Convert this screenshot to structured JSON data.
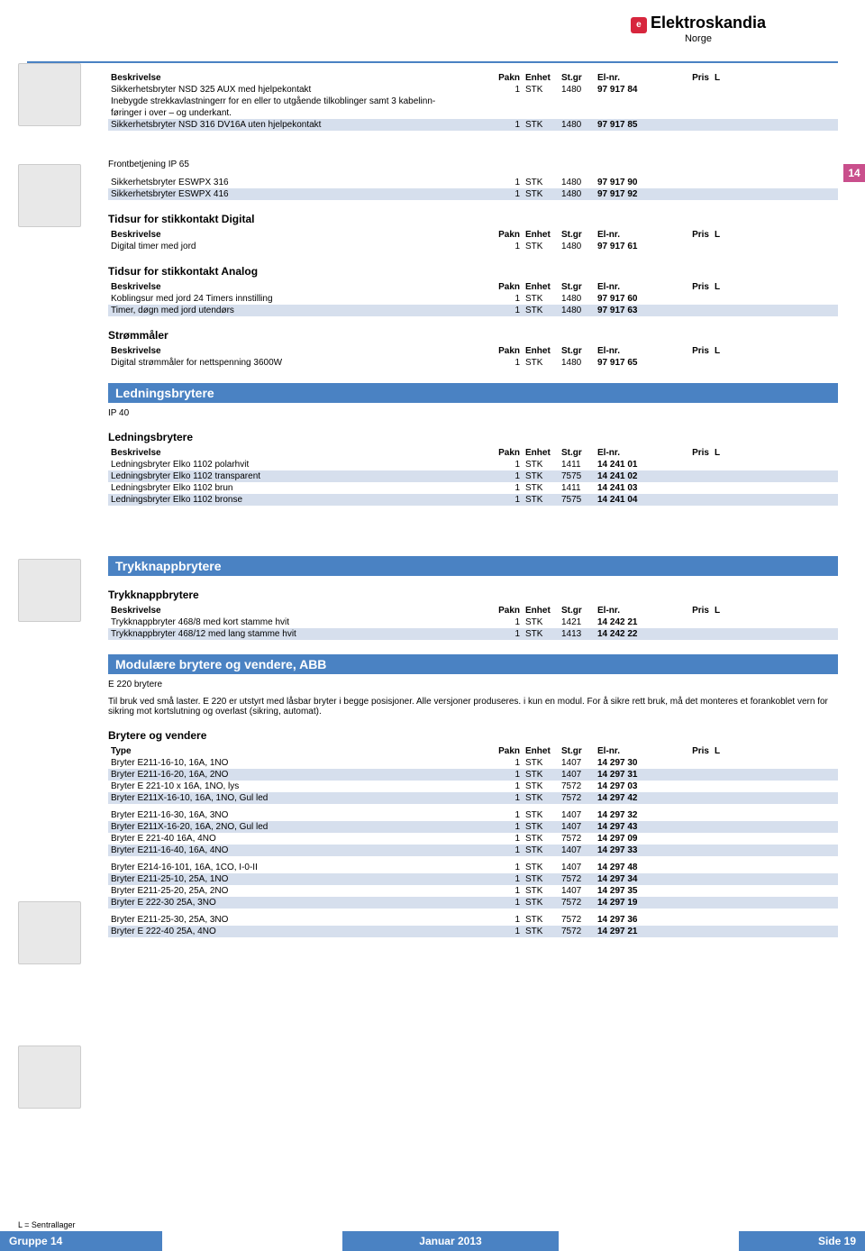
{
  "brand": {
    "name": "Elektroskandia",
    "sub": "Norge",
    "icon": "e"
  },
  "tab": "14",
  "headers": {
    "desc": "Beskrivelse",
    "type": "Type",
    "pakn": "Pakn",
    "enhet": "Enhet",
    "stgr": "St.gr",
    "elnr": "El-nr.",
    "pris": "Pris",
    "l": "L"
  },
  "tables": {
    "t1": {
      "rows": [
        {
          "d": "Sikkerhetsbryter NSD 325 AUX med hjelpekontakt",
          "p": "1",
          "e": "STK",
          "s": "1480",
          "n": "97 917 84",
          "alt": false
        },
        {
          "d": "Inebygde strekkavlastningerr for en eller to utgående tilkoblinger samt 3 kabelinn-",
          "alt": false,
          "textonly": true
        },
        {
          "d": "føringer i over – og underkant.",
          "alt": false,
          "textonly": true
        },
        {
          "d": "Sikkerhetsbryter NSD 316 DV16A uten hjelpekontakt",
          "p": "1",
          "e": "STK",
          "s": "1480",
          "n": "97 917 85",
          "alt": true
        }
      ]
    },
    "t2": {
      "title": "Frontbetjening IP 65",
      "rows": [
        {
          "d": "Sikkerhetsbryter ESWPX 316",
          "p": "1",
          "e": "STK",
          "s": "1480",
          "n": "97 917 90",
          "alt": false
        },
        {
          "d": "Sikkerhetsbryter ESWPX 416",
          "p": "1",
          "e": "STK",
          "s": "1480",
          "n": "97 917 92",
          "alt": true
        }
      ]
    },
    "t3": {
      "title": "Tidsur for stikkontakt Digital",
      "rows": [
        {
          "d": "Digital timer med jord",
          "p": "1",
          "e": "STK",
          "s": "1480",
          "n": "97 917 61",
          "alt": false
        }
      ]
    },
    "t4": {
      "title": "Tidsur for stikkontakt Analog",
      "rows": [
        {
          "d": "Koblingsur med jord 24 Timers innstilling",
          "p": "1",
          "e": "STK",
          "s": "1480",
          "n": "97 917 60",
          "alt": false
        },
        {
          "d": "Timer, døgn med jord utendørs",
          "p": "1",
          "e": "STK",
          "s": "1480",
          "n": "97 917 63",
          "alt": true
        }
      ]
    },
    "t5": {
      "title": "Strømmåler",
      "rows": [
        {
          "d": "Digital strømmåler for nettspenning 3600W",
          "p": "1",
          "e": "STK",
          "s": "1480",
          "n": "97 917 65",
          "alt": false
        }
      ]
    },
    "t6": {
      "cat": "Ledningsbrytere",
      "note": "IP 40",
      "title": "Ledningsbrytere",
      "rows": [
        {
          "d": "Ledningsbryter Elko 1102 polarhvit",
          "p": "1",
          "e": "STK",
          "s": "1411",
          "n": "14 241 01",
          "alt": false
        },
        {
          "d": "Ledningsbryter Elko 1102 transparent",
          "p": "1",
          "e": "STK",
          "s": "7575",
          "n": "14 241 02",
          "alt": true
        },
        {
          "d": "Ledningsbryter Elko 1102 brun",
          "p": "1",
          "e": "STK",
          "s": "1411",
          "n": "14 241 03",
          "alt": false
        },
        {
          "d": "Ledningsbryter Elko 1102 bronse",
          "p": "1",
          "e": "STK",
          "s": "7575",
          "n": "14 241 04",
          "alt": true
        }
      ]
    },
    "t7": {
      "cat": "Trykknappbrytere",
      "title": "Trykknappbrytere",
      "rows": [
        {
          "d": "Trykknappbryter 468/8 med kort stamme hvit",
          "p": "1",
          "e": "STK",
          "s": "1421",
          "n": "14 242 21",
          "alt": false
        },
        {
          "d": "Trykknappbryter 468/12 med lang stamme hvit",
          "p": "1",
          "e": "STK",
          "s": "1413",
          "n": "14 242 22",
          "alt": true
        }
      ]
    },
    "t8": {
      "cat": "Modulære brytere og vendere, ABB",
      "noteTitle": "E 220 brytere",
      "note": "Til bruk ved små laster. E 220 er utstyrt med låsbar bryter i begge posisjoner. Alle versjoner produseres. i kun en modul. For å sikre rett bruk, må det monteres et forankoblet vern for sikring mot kortslutning og overlast (sikring, automat).",
      "title": "Brytere og vendere",
      "header": "type",
      "groups": [
        [
          {
            "d": "Bryter E211-16-10, 16A, 1NO",
            "p": "1",
            "e": "STK",
            "s": "1407",
            "n": "14 297 30",
            "alt": false
          },
          {
            "d": "Bryter E211-16-20, 16A, 2NO",
            "p": "1",
            "e": "STK",
            "s": "1407",
            "n": "14 297 31",
            "alt": true
          },
          {
            "d": "Bryter E 221-10 x 16A, 1NO, lys",
            "p": "1",
            "e": "STK",
            "s": "7572",
            "n": "14 297 03",
            "alt": false
          },
          {
            "d": "Bryter E211X-16-10, 16A, 1NO, Gul led",
            "p": "1",
            "e": "STK",
            "s": "7572",
            "n": "14 297 42",
            "alt": true
          }
        ],
        [
          {
            "d": "Bryter E211-16-30, 16A, 3NO",
            "p": "1",
            "e": "STK",
            "s": "1407",
            "n": "14 297 32",
            "alt": false
          },
          {
            "d": "Bryter E211X-16-20, 16A, 2NO, Gul led",
            "p": "1",
            "e": "STK",
            "s": "1407",
            "n": "14 297 43",
            "alt": true
          },
          {
            "d": "Bryter E 221-40 16A, 4NO",
            "p": "1",
            "e": "STK",
            "s": "7572",
            "n": "14 297 09",
            "alt": false
          },
          {
            "d": "Bryter E211-16-40, 16A, 4NO",
            "p": "1",
            "e": "STK",
            "s": "1407",
            "n": "14 297 33",
            "alt": true
          }
        ],
        [
          {
            "d": "Bryter E214-16-101, 16A, 1CO, I-0-II",
            "p": "1",
            "e": "STK",
            "s": "1407",
            "n": "14 297 48",
            "alt": false
          },
          {
            "d": "Bryter E211-25-10, 25A, 1NO",
            "p": "1",
            "e": "STK",
            "s": "7572",
            "n": "14 297 34",
            "alt": true
          },
          {
            "d": "Bryter E211-25-20, 25A, 2NO",
            "p": "1",
            "e": "STK",
            "s": "1407",
            "n": "14 297 35",
            "alt": false
          },
          {
            "d": "Bryter E 222-30 25A, 3NO",
            "p": "1",
            "e": "STK",
            "s": "7572",
            "n": "14 297 19",
            "alt": true
          }
        ],
        [
          {
            "d": "Bryter E211-25-30, 25A, 3NO",
            "p": "1",
            "e": "STK",
            "s": "7572",
            "n": "14 297 36",
            "alt": false
          },
          {
            "d": "Bryter E 222-40 25A, 4NO",
            "p": "1",
            "e": "STK",
            "s": "7572",
            "n": "14 297 21",
            "alt": true
          }
        ]
      ]
    }
  },
  "footer": {
    "note": "L = Sentrallager",
    "left": "Gruppe 14",
    "center": "Januar 2013",
    "right": "Side   19"
  }
}
